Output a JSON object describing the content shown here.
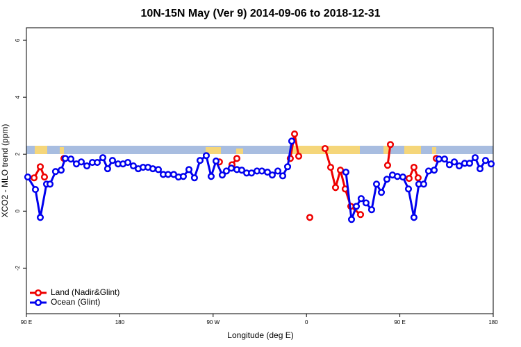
{
  "chart_data": {
    "type": "line",
    "title": "10N-15N May (Ver 9)   2014-09-06 to 2018-12-31",
    "x_label": "Longitude (deg E)",
    "y_label": "XCO2 - MLO trend (ppm)",
    "xlim": [
      90,
      540
    ],
    "ylim": [
      -3.6,
      6.44
    ],
    "xticks": [
      {
        "value": 90,
        "label": "90 E"
      },
      {
        "value": 180,
        "label": "180"
      },
      {
        "value": 270,
        "label": "90 W"
      },
      {
        "value": 360,
        "label": "0"
      },
      {
        "value": 450,
        "label": "90 E"
      },
      {
        "value": 540,
        "label": "180"
      }
    ],
    "yticks": [
      -2,
      0,
      2,
      4,
      6
    ],
    "legend": "bottom-left",
    "series": [
      {
        "name": "Land (Nadir&Glint)",
        "color": "#ee0000",
        "x": [
          97.4,
          103.4,
          107.4,
          117,
          126.2,
          200,
          276.1,
          282,
          288.2,
          292.9,
          318,
          344.4,
          348.5,
          352.5,
          358,
          363.2,
          370,
          377.9,
          383.3,
          388.0,
          392.7,
          397.3,
          402.7,
          412.1,
          425,
          438.2,
          440.9,
          450,
          458.9,
          463.6,
          467.6,
          476,
          485.1
        ],
        "values": [
          1.17,
          1.56,
          1.2,
          null,
          1.85,
          null,
          1.73,
          null,
          1.63,
          1.85,
          null,
          1.85,
          2.71,
          1.93,
          null,
          -0.22,
          null,
          2.2,
          1.54,
          0.83,
          1.44,
          0.78,
          0.17,
          -0.12,
          null,
          1.61,
          2.34,
          null,
          1.15,
          1.54,
          1.17,
          null,
          1.85
        ]
      },
      {
        "name": "Ocean (Glint)",
        "color": "#0000ee",
        "x": [
          91.3,
          98.7,
          103.4,
          109.4,
          112.8,
          118.1,
          123.5,
          127.5,
          132.9,
          138.2,
          142.9,
          148.3,
          153.6,
          158.3,
          163.7,
          168.3,
          173.0,
          178.4,
          183.1,
          187.8,
          193.1,
          197.8,
          202.5,
          207.2,
          211.9,
          217.2,
          221.9,
          226.6,
          232.0,
          236.6,
          241.3,
          246.7,
          252.0,
          257.4,
          263.4,
          268.1,
          272.8,
          278.8,
          282.8,
          287.5,
          292.9,
          297.6,
          302.3,
          307.0,
          312.3,
          317.0,
          322.4,
          327.0,
          332.4,
          337.1,
          341.8,
          345.8,
          372,
          398.0,
          403.4,
          408.1,
          412.7,
          417.4,
          422.8,
          427.5,
          432.2,
          437.5,
          442.9,
          447.6,
          452.9,
          458.3,
          463.6,
          468.3,
          473.0,
          477.7,
          483.1,
          487.7,
          493.1,
          497.8,
          502.5,
          507.2,
          512.5,
          517.2,
          522.6,
          527.3,
          532.6,
          538.0
        ],
        "values": [
          1.2,
          0.76,
          -0.22,
          0.95,
          0.95,
          1.39,
          1.44,
          1.85,
          1.83,
          1.66,
          1.73,
          1.59,
          1.71,
          1.71,
          1.88,
          1.49,
          1.78,
          1.66,
          1.66,
          1.71,
          1.59,
          1.49,
          1.54,
          1.54,
          1.49,
          1.46,
          1.29,
          1.29,
          1.29,
          1.2,
          1.22,
          1.46,
          1.17,
          1.78,
          1.95,
          1.22,
          1.76,
          1.27,
          1.41,
          1.51,
          1.46,
          1.44,
          1.34,
          1.34,
          1.41,
          1.41,
          1.37,
          1.27,
          1.41,
          1.24,
          1.56,
          2.46,
          null,
          1.37,
          -0.29,
          0.17,
          0.44,
          0.29,
          0.05,
          0.95,
          0.66,
          1.12,
          1.27,
          1.22,
          1.2,
          0.78,
          -0.22,
          0.95,
          0.95,
          1.41,
          1.44,
          1.83,
          1.83,
          1.63,
          1.73,
          1.59,
          1.68,
          1.68,
          1.88,
          1.49,
          1.78,
          1.66
        ]
      }
    ]
  }
}
